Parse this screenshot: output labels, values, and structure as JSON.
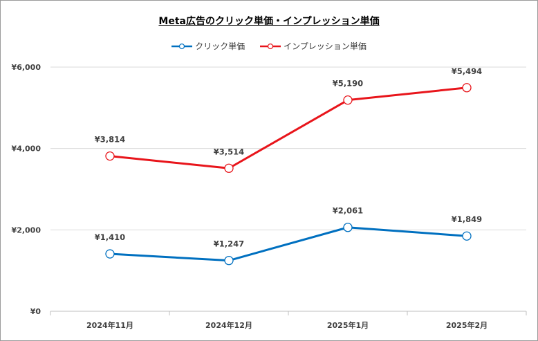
{
  "chart_data": {
    "type": "line",
    "title": "Meta広告のクリック単価・インプレッション単価",
    "xlabel": "",
    "ylabel": "",
    "categories": [
      "2024年11月",
      "2024年12月",
      "2025年1月",
      "2025年2月"
    ],
    "ylim": [
      0,
      6000
    ],
    "yticks": [
      0,
      2000,
      4000,
      6000
    ],
    "ytick_labels": [
      "¥0",
      "¥2,000",
      "¥4,000",
      "¥6,000"
    ],
    "grid": true,
    "legend_position": "top",
    "series": [
      {
        "name": "クリック単価",
        "color": "#0070c0",
        "values": [
          1410,
          1247,
          2061,
          1849
        ],
        "labels": [
          "¥1,410",
          "¥1,247",
          "¥2,061",
          "¥1,849"
        ]
      },
      {
        "name": "インプレッション単価",
        "color": "#e8151b",
        "values": [
          3814,
          3514,
          5190,
          5494
        ],
        "labels": [
          "¥3,814",
          "¥3,514",
          "¥5,190",
          "¥5,494"
        ]
      }
    ]
  }
}
